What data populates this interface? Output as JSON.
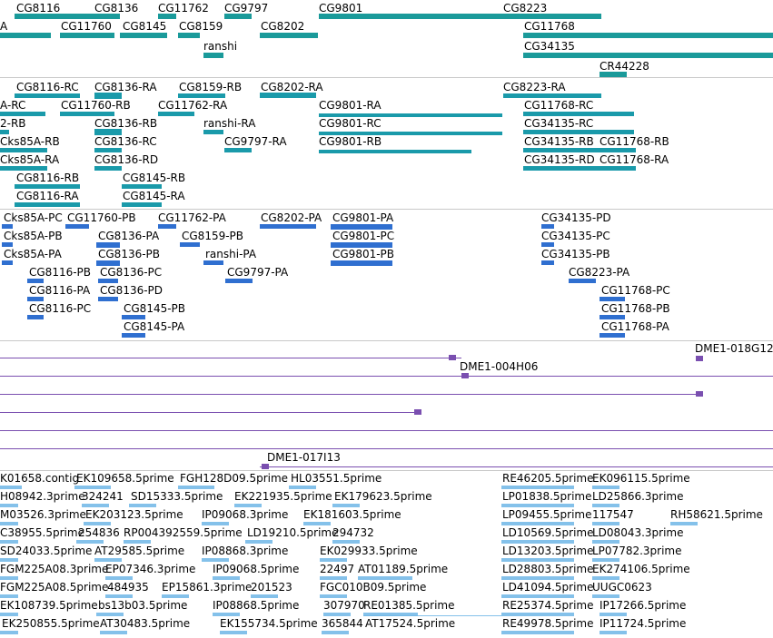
{
  "tracks": {
    "genes": {
      "color": "#1a9a9a",
      "features": [
        {
          "label": "CG8116",
          "name": "gene-cg8116"
        },
        {
          "label": "CG8136",
          "name": "gene-cg8136"
        },
        {
          "label": "CG11762",
          "name": "gene-cg11762"
        },
        {
          "label": "CG9797",
          "name": "gene-cg9797"
        },
        {
          "label": "CG9801",
          "name": "gene-cg9801"
        },
        {
          "label": "CG8223",
          "name": "gene-cg8223"
        },
        {
          "label": "A",
          "name": "gene-cks85a-partial"
        },
        {
          "label": "CG11760",
          "name": "gene-cg11760"
        },
        {
          "label": "CG8145",
          "name": "gene-cg8145"
        },
        {
          "label": "CG8159",
          "name": "gene-cg8159"
        },
        {
          "label": "CG8202",
          "name": "gene-cg8202"
        },
        {
          "label": "CG11768",
          "name": "gene-cg11768"
        },
        {
          "label": "ranshi",
          "name": "gene-ranshi"
        },
        {
          "label": "CG34135",
          "name": "gene-cg34135"
        },
        {
          "label": "CR44228",
          "name": "gene-cr44228"
        }
      ]
    },
    "transcripts": {
      "color": "#1a9aaa",
      "features": [
        {
          "label": "CG8116-RC"
        },
        {
          "label": "CG8136-RA"
        },
        {
          "label": "CG8159-RB"
        },
        {
          "label": "CG8202-RA"
        },
        {
          "label": "CG8223-RA"
        },
        {
          "label": "A-RC"
        },
        {
          "label": "CG11760-RB"
        },
        {
          "label": "CG11762-RA"
        },
        {
          "label": "CG9801-RA"
        },
        {
          "label": "CG11768-RC"
        },
        {
          "label": "2-RB"
        },
        {
          "label": "CG8136-RB"
        },
        {
          "label": "ranshi-RA"
        },
        {
          "label": "CG9801-RC"
        },
        {
          "label": "CG34135-RC"
        },
        {
          "label": "Cks85A-RB"
        },
        {
          "label": "CG8136-RC"
        },
        {
          "label": "CG9797-RA"
        },
        {
          "label": "CG9801-RB"
        },
        {
          "label": "CG34135-RB"
        },
        {
          "label": "CG11768-RB"
        },
        {
          "label": "Cks85A-RA"
        },
        {
          "label": "CG8136-RD"
        },
        {
          "label": "CG34135-RD"
        },
        {
          "label": "CG11768-RA"
        },
        {
          "label": "CG8116-RB"
        },
        {
          "label": "CG8145-RB"
        },
        {
          "label": "CG8116-RA"
        },
        {
          "label": "CG8145-RA"
        }
      ]
    },
    "proteins": {
      "color": "#2f6fd0",
      "features": [
        {
          "label": "Cks85A-PC"
        },
        {
          "label": "CG11760-PB"
        },
        {
          "label": "CG11762-PA"
        },
        {
          "label": "CG8202-PA"
        },
        {
          "label": "CG9801-PA"
        },
        {
          "label": "CG34135-PD"
        },
        {
          "label": "Cks85A-PB"
        },
        {
          "label": "CG8136-PA"
        },
        {
          "label": "CG8159-PB"
        },
        {
          "label": "CG9801-PC"
        },
        {
          "label": "CG34135-PC"
        },
        {
          "label": "Cks85A-PA"
        },
        {
          "label": "CG8136-PB"
        },
        {
          "label": "ranshi-PA"
        },
        {
          "label": "CG9801-PB"
        },
        {
          "label": "CG34135-PB"
        },
        {
          "label": "CG8116-PB"
        },
        {
          "label": "CG8136-PC"
        },
        {
          "label": "CG9797-PA"
        },
        {
          "label": "CG8223-PA"
        },
        {
          "label": "CG8116-PA"
        },
        {
          "label": "CG8136-PD"
        },
        {
          "label": "CG11768-PC"
        },
        {
          "label": "CG8116-PC"
        },
        {
          "label": "CG8145-PB"
        },
        {
          "label": "CG11768-PB"
        },
        {
          "label": "CG8145-PA"
        },
        {
          "label": "CG11768-PA"
        }
      ]
    },
    "clones": {
      "color": "#7a4fb0",
      "features": [
        {
          "label": "DME1-018G12"
        },
        {
          "label": "DME1-004H06"
        },
        {
          "label": "DME1-017I13"
        }
      ]
    },
    "ests": {
      "color": "#6fb6e6",
      "features": [
        {
          "label": "K01658.contig"
        },
        {
          "label": "EK109658.5prime"
        },
        {
          "label": "FGH128D09.5prime"
        },
        {
          "label": "HL03551.5prime"
        },
        {
          "label": "RE46205.5prime"
        },
        {
          "label": "EK096115.5prime"
        },
        {
          "label": "H08942.3prime"
        },
        {
          "label": "324241"
        },
        {
          "label": "SD15333.5prime"
        },
        {
          "label": "EK221935.5prime"
        },
        {
          "label": "EK179623.5prime"
        },
        {
          "label": "LP01838.5prime"
        },
        {
          "label": "LD25866.3prime"
        },
        {
          "label": "M03526.3prime"
        },
        {
          "label": "EK203123.5prime"
        },
        {
          "label": "IP09068.3prime"
        },
        {
          "label": "EK181603.5prime"
        },
        {
          "label": "LP09455.5prime"
        },
        {
          "label": "117547"
        },
        {
          "label": "RH58621.5prime"
        },
        {
          "label": "C38955.5prime"
        },
        {
          "label": "254836"
        },
        {
          "label": "RP004392559.5prime"
        },
        {
          "label": "LD19210.5prime"
        },
        {
          "label": "294732"
        },
        {
          "label": "LD10569.5prime"
        },
        {
          "label": "LD08043.3prime"
        },
        {
          "label": "SD24033.5prime"
        },
        {
          "label": "AT29585.5prime"
        },
        {
          "label": "IP08868.3prime"
        },
        {
          "label": "EK029933.5prime"
        },
        {
          "label": "LD13203.5prime"
        },
        {
          "label": "LP07782.3prime"
        },
        {
          "label": "FGM225A08.3prime"
        },
        {
          "label": "EP07346.3prime"
        },
        {
          "label": "IP09068.5prime"
        },
        {
          "label": "22497"
        },
        {
          "label": "AT01189.5prime"
        },
        {
          "label": "LD28803.5prime"
        },
        {
          "label": "EK274106.5prime"
        },
        {
          "label": "FGM225A08.5prime"
        },
        {
          "label": "484935"
        },
        {
          "label": "EP15861.3prime"
        },
        {
          "label": "201523"
        },
        {
          "label": "FGC010B09.5prime"
        },
        {
          "label": "LD41094.5prime"
        },
        {
          "label": "UUGC0623"
        },
        {
          "label": "EK108739.5prime"
        },
        {
          "label": "bs13b03.5prime"
        },
        {
          "label": "IP08868.5prime"
        },
        {
          "label": "307970"
        },
        {
          "label": "RE01385.5prime"
        },
        {
          "label": "RE25374.5prime"
        },
        {
          "label": "IP17266.5prime"
        },
        {
          "label": "EK250855.5prime"
        },
        {
          "label": "AT30483.5prime"
        },
        {
          "label": "EK155734.5prime"
        },
        {
          "label": "365844"
        },
        {
          "label": "AT17524.5prime"
        },
        {
          "label": "RE49978.5prime"
        },
        {
          "label": "IP11724.5prime"
        }
      ]
    }
  }
}
